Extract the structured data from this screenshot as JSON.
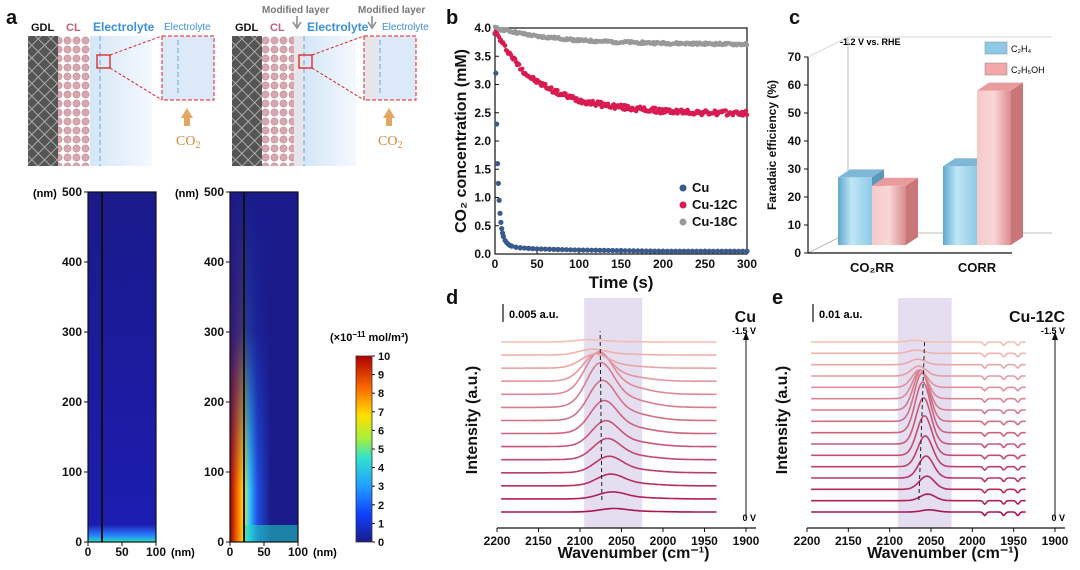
{
  "panel_labels": {
    "a": "a",
    "b": "b",
    "c": "c",
    "d": "d",
    "e": "e"
  },
  "schematic": {
    "left": {
      "gdl": "GDL",
      "cl": "CL",
      "electrolyte": "Electrolyte",
      "zoom_electrolyte": "Electrolyte",
      "co2": "CO",
      "co2_sub": "2"
    },
    "right": {
      "gdl": "GDL",
      "cl": "CL",
      "electrolyte": "Electrolyte",
      "modified_layer": "Modified layer",
      "zoom_modified_layer": "Modified layer",
      "zoom_electrolyte": "Electrolyte",
      "co2": "CO",
      "co2_sub": "2"
    }
  },
  "heatmaps": {
    "y_unit": "(nm)",
    "x_unit": "(nm)",
    "y_ticks": [
      "500",
      "400",
      "300",
      "200",
      "100",
      "0"
    ],
    "x_ticks": [
      "0",
      "50",
      "100"
    ],
    "colorbar_title": "(×10",
    "colorbar_exp": "−11",
    "colorbar_unit": " mol/m³)",
    "colorbar_ticks": [
      "10",
      "9",
      "8",
      "7",
      "6",
      "5",
      "4",
      "3",
      "2",
      "1",
      "0"
    ],
    "colors": {
      "low": "#1a1a8a",
      "mid": "#33aaff",
      "high": "#b00000"
    }
  },
  "chart_data": [
    {
      "type": "scatter",
      "panel": "b",
      "xlabel": "Time (s)",
      "ylabel": "CO₂ concentration (mM)",
      "xlim": [
        0,
        300
      ],
      "ylim": [
        0,
        4.0
      ],
      "x_ticks": [
        "0",
        "50",
        "100",
        "150",
        "200",
        "250",
        "300"
      ],
      "y_ticks": [
        "0.0",
        "0.5",
        "1.0",
        "1.5",
        "2.0",
        "2.5",
        "3.0",
        "3.5",
        "4.0"
      ],
      "series": [
        {
          "name": "Cu",
          "color": "#3a5a8c",
          "x": [
            0,
            1,
            2,
            3,
            4,
            5,
            6,
            7,
            8,
            9,
            10,
            12,
            14,
            16,
            18,
            20,
            25,
            30,
            40,
            50,
            75,
            100,
            150,
            200,
            250,
            300
          ],
          "y": [
            3.9,
            3.2,
            2.3,
            1.6,
            1.25,
            0.95,
            0.72,
            0.56,
            0.45,
            0.37,
            0.31,
            0.24,
            0.2,
            0.17,
            0.15,
            0.14,
            0.12,
            0.11,
            0.1,
            0.09,
            0.08,
            0.07,
            0.06,
            0.05,
            0.05,
            0.05
          ]
        },
        {
          "name": "Cu-12C",
          "color": "#d81b50",
          "x": [
            0,
            10,
            20,
            30,
            40,
            50,
            75,
            100,
            125,
            150,
            175,
            200,
            250,
            300
          ],
          "y": [
            3.95,
            3.7,
            3.5,
            3.3,
            3.15,
            3.05,
            2.85,
            2.72,
            2.65,
            2.6,
            2.56,
            2.53,
            2.5,
            2.49
          ]
        },
        {
          "name": "Cu-18C",
          "color": "#999999",
          "x": [
            0,
            25,
            50,
            75,
            100,
            150,
            200,
            250,
            300
          ],
          "y": [
            4.0,
            3.92,
            3.85,
            3.82,
            3.78,
            3.75,
            3.73,
            3.72,
            3.71
          ]
        }
      ]
    },
    {
      "type": "bar",
      "panel": "c",
      "annotation": "-1.2 V vs. RHE",
      "ylabel": "Faradaic efficiency (%)",
      "ylim": [
        0,
        70
      ],
      "y_ticks": [
        "0",
        "10",
        "20",
        "30",
        "40",
        "50",
        "60",
        "70"
      ],
      "categories": [
        "CO₂RR",
        "CORR"
      ],
      "series": [
        {
          "name": "C₂H₄",
          "color": "#8ecae6",
          "values": [
            27,
            31
          ]
        },
        {
          "name": "C₂H₅OH",
          "color": "#f4a7a8",
          "values": [
            24,
            58
          ]
        }
      ]
    },
    {
      "type": "line",
      "panel": "d",
      "title": "Cu",
      "scale_label": "0.005 a.u.",
      "xlabel": "Wavenumber (cm⁻¹)",
      "ylabel": "Intensity (a.u.)",
      "xlim": [
        2200,
        1900
      ],
      "x_ticks": [
        "2200",
        "2150",
        "2100",
        "2050",
        "2000",
        "1950",
        "1900"
      ],
      "potential_top": "-1.5 V",
      "potential_bottom": "0 V",
      "band_range": [
        2095,
        2025
      ],
      "peak_positions": [
        2060,
        2062,
        2064,
        2066,
        2068,
        2070,
        2072,
        2074,
        2076,
        2078,
        2080,
        2083,
        2086,
        2090
      ],
      "peak_heights": [
        0.3,
        0.6,
        1.0,
        1.4,
        1.8,
        2.2,
        2.8,
        3.4,
        3.8,
        3.6,
        2.4,
        1.2,
        0.5,
        0.2
      ]
    },
    {
      "type": "line",
      "panel": "e",
      "title": "Cu-12C",
      "scale_label": "0.01 a.u.",
      "xlabel": "Wavenumber (cm⁻¹)",
      "ylabel": "Intensity (a.u.)",
      "xlim": [
        2200,
        1900
      ],
      "x_ticks": [
        "2200",
        "2150",
        "2100",
        "2050",
        "2000",
        "1950",
        "1900"
      ],
      "potential_top": "-1.5 V",
      "potential_bottom": "0 V",
      "band_range": [
        2090,
        2025
      ],
      "peak_positions": [
        2052,
        2054,
        2055,
        2056,
        2057,
        2058,
        2059,
        2060,
        2061,
        2062,
        2063,
        2064,
        2065,
        2066,
        2068,
        2070
      ],
      "peak_heights": [
        0.2,
        0.6,
        1.2,
        2.0,
        2.8,
        3.6,
        4.2,
        4.6,
        4.4,
        3.6,
        2.6,
        1.6,
        0.9,
        0.5,
        0.3,
        0.15
      ]
    }
  ]
}
